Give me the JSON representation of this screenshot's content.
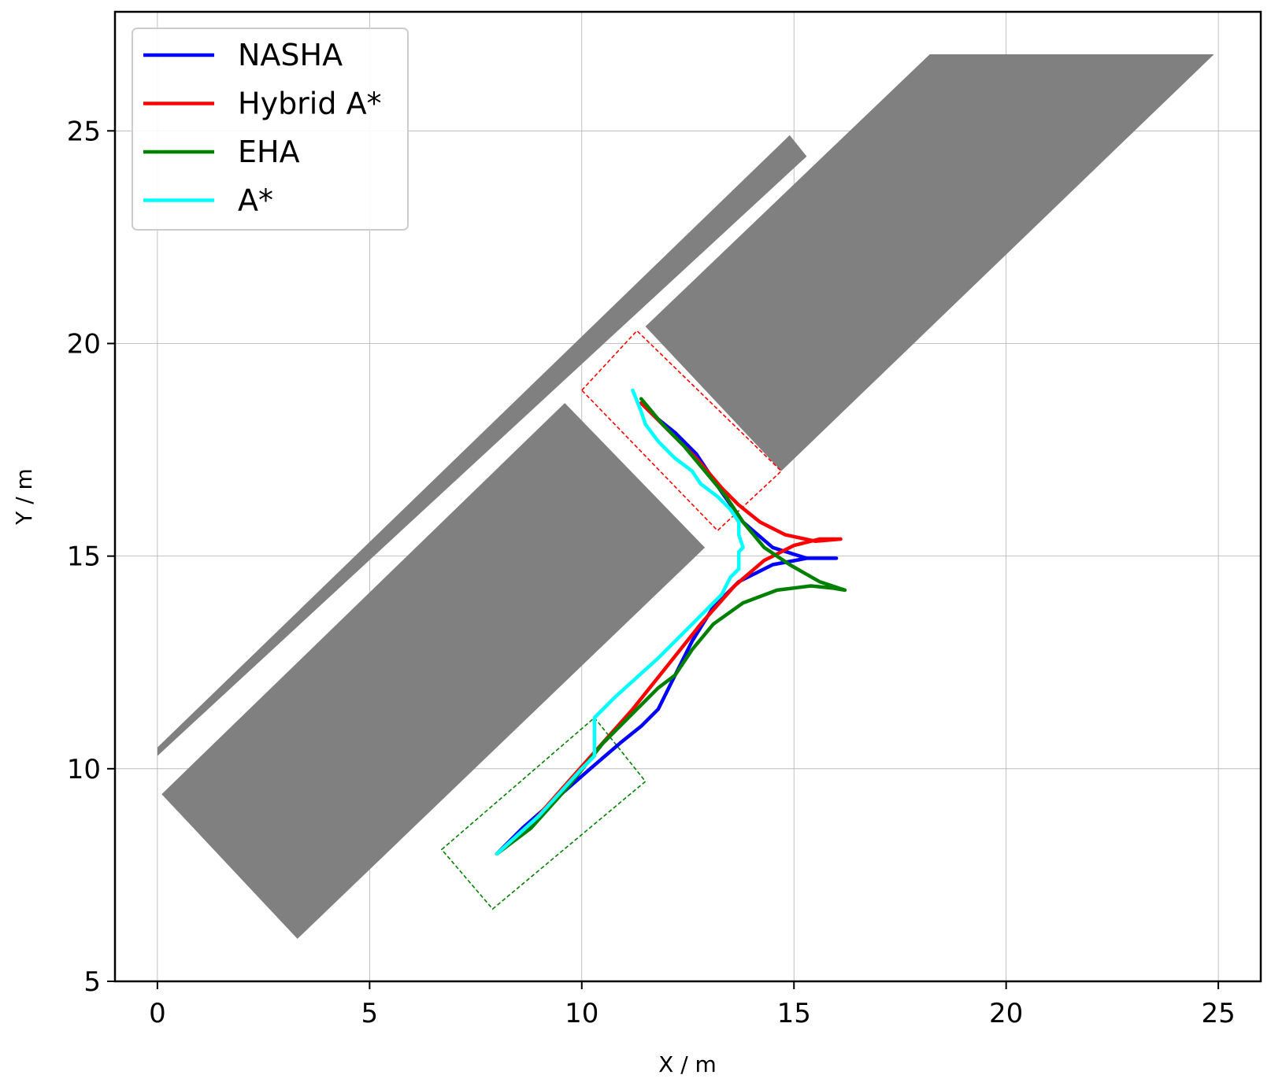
{
  "chart_data": {
    "type": "line",
    "title": "",
    "xlabel": "X / m",
    "ylabel": "Y / m",
    "xlim": [
      -1,
      26
    ],
    "ylim": [
      5,
      27.8
    ],
    "xticks": [
      0,
      5,
      10,
      15,
      20,
      25
    ],
    "yticks": [
      5,
      10,
      15,
      20,
      25
    ],
    "xtick_labels": [
      "0",
      "5",
      "10",
      "15",
      "20",
      "25"
    ],
    "ytick_labels": [
      "5",
      "10",
      "15",
      "20",
      "25"
    ],
    "grid": true,
    "legend_position": "top-left",
    "obstacle_color": "#808080",
    "obstacles": [
      [
        [
          0.0,
          10.5
        ],
        [
          14.9,
          24.9
        ],
        [
          15.3,
          24.4
        ],
        [
          0.0,
          10.3
        ]
      ],
      [
        [
          11.5,
          20.4
        ],
        [
          18.2,
          26.8
        ],
        [
          24.9,
          26.8
        ],
        [
          14.7,
          17.0
        ]
      ],
      [
        [
          0.1,
          9.4
        ],
        [
          9.6,
          18.6
        ],
        [
          12.9,
          15.2
        ],
        [
          3.3,
          6.0
        ]
      ]
    ],
    "start_box": {
      "color": "#008000",
      "points": [
        [
          6.7,
          8.1
        ],
        [
          10.3,
          11.2
        ],
        [
          11.5,
          9.7
        ],
        [
          7.9,
          6.7
        ]
      ]
    },
    "goal_box": {
      "color": "#ff0000",
      "points": [
        [
          10.0,
          18.9
        ],
        [
          11.3,
          20.3
        ],
        [
          14.7,
          17.0
        ],
        [
          13.2,
          15.6
        ]
      ]
    },
    "series": [
      {
        "name": "NASHA",
        "color": "#0000ff",
        "x": [
          8.0,
          8.6,
          9.4,
          10.2,
          10.9,
          11.4,
          11.8,
          12.2,
          12.6,
          13.1,
          13.7,
          14.5,
          15.3,
          16.0,
          15.3,
          14.5,
          13.8,
          13.3,
          12.7,
          12.2,
          11.7,
          11.4
        ],
        "y": [
          8.0,
          8.6,
          9.3,
          10.0,
          10.6,
          11.0,
          11.4,
          12.2,
          13.0,
          13.8,
          14.4,
          14.8,
          14.95,
          14.95,
          14.95,
          15.2,
          15.8,
          16.5,
          17.4,
          17.9,
          18.3,
          18.6
        ]
      },
      {
        "name": "Hybrid A*",
        "color": "#ff0000",
        "x": [
          8.0,
          8.8,
          9.6,
          10.4,
          11.2,
          12.0,
          12.8,
          13.6,
          14.3,
          15.0,
          15.6,
          16.1,
          15.5,
          14.8,
          14.2,
          13.7,
          13.3,
          12.7,
          12.2,
          11.7,
          11.4
        ],
        "y": [
          8.0,
          8.7,
          9.6,
          10.5,
          11.4,
          12.4,
          13.4,
          14.3,
          14.9,
          15.25,
          15.4,
          15.4,
          15.35,
          15.5,
          15.8,
          16.2,
          16.6,
          17.3,
          17.8,
          18.3,
          18.6
        ]
      },
      {
        "name": "EHA",
        "color": "#008000",
        "x": [
          8.0,
          8.8,
          9.7,
          10.5,
          11.3,
          11.8,
          12.2,
          12.6,
          13.1,
          13.8,
          14.6,
          15.4,
          15.9,
          16.2,
          15.6,
          14.9,
          14.3,
          13.8,
          13.4,
          12.9,
          12.4,
          11.9,
          11.4
        ],
        "y": [
          8.0,
          8.6,
          9.6,
          10.6,
          11.4,
          11.9,
          12.2,
          12.8,
          13.4,
          13.9,
          14.2,
          14.3,
          14.25,
          14.2,
          14.4,
          14.8,
          15.2,
          15.8,
          16.4,
          17.0,
          17.6,
          18.1,
          18.7
        ]
      },
      {
        "name": "A*",
        "color": "#00ffff",
        "x": [
          8.0,
          9.0,
          10.0,
          10.3,
          10.3,
          10.8,
          11.8,
          12.8,
          13.3,
          13.5,
          13.7,
          13.7,
          13.8,
          13.7,
          13.7,
          13.5,
          13.2,
          12.8,
          12.6,
          12.2,
          11.8,
          11.5,
          11.4,
          11.2
        ],
        "y": [
          8.0,
          8.9,
          10.0,
          10.3,
          11.2,
          11.7,
          12.6,
          13.6,
          14.1,
          14.5,
          14.7,
          15.1,
          15.2,
          15.5,
          15.8,
          16.1,
          16.4,
          16.7,
          17.0,
          17.3,
          17.7,
          18.1,
          18.4,
          18.9
        ]
      }
    ]
  }
}
